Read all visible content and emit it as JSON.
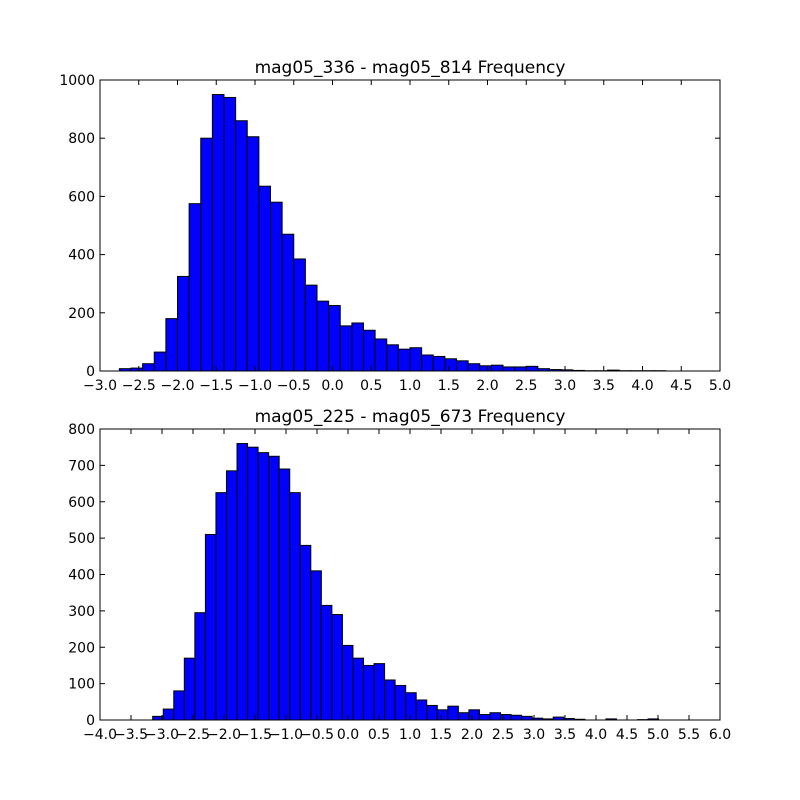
{
  "chart_data": [
    {
      "type": "bar",
      "title": "mag05_336 - mag05_814 Frequency",
      "xlabel": "",
      "ylabel": "",
      "xlim": [
        -3.0,
        5.0
      ],
      "ylim": [
        0,
        1000
      ],
      "grid": false,
      "bar_color": "#0000ff",
      "xticks": [
        "−3.0",
        "−2.5",
        "−2.0",
        "−1.5",
        "−1.0",
        "−0.5",
        "0.0",
        "0.5",
        "1.0",
        "1.5",
        "2.0",
        "2.5",
        "3.0",
        "3.5",
        "4.0",
        "4.5",
        "5.0"
      ],
      "yticks": [
        "0",
        "200",
        "400",
        "600",
        "800",
        "1000"
      ],
      "bin_start": -2.75,
      "bin_width": 0.15,
      "values": [
        8,
        10,
        25,
        65,
        180,
        325,
        575,
        800,
        950,
        940,
        860,
        805,
        635,
        580,
        470,
        385,
        295,
        240,
        225,
        155,
        165,
        140,
        110,
        90,
        75,
        80,
        55,
        50,
        42,
        35,
        25,
        18,
        20,
        14,
        14,
        16,
        8,
        5,
        4,
        2,
        1,
        1,
        3,
        1,
        1,
        1,
        1,
        0,
        0,
        0,
        0,
        0,
        0
      ]
    },
    {
      "type": "bar",
      "title": "mag05_225 - mag05_673 Frequency",
      "xlabel": "",
      "ylabel": "",
      "xlim": [
        -4.0,
        6.0
      ],
      "ylim": [
        0,
        800
      ],
      "grid": false,
      "bar_color": "#0000ff",
      "xticks": [
        "−4.0",
        "−3.5",
        "−3.0",
        "−2.5",
        "−2.0",
        "−1.5",
        "−1.0",
        "−0.5",
        "0.0",
        "0.5",
        "1.0",
        "1.5",
        "2.0",
        "2.5",
        "3.0",
        "3.5",
        "4.0",
        "4.5",
        "5.0",
        "5.5",
        "6.0"
      ],
      "yticks": [
        "0",
        "100",
        "200",
        "300",
        "400",
        "500",
        "600",
        "700",
        "800"
      ],
      "bin_start": -3.15,
      "bin_width": 0.17,
      "values": [
        10,
        30,
        80,
        170,
        295,
        510,
        625,
        685,
        760,
        750,
        735,
        725,
        690,
        625,
        480,
        410,
        315,
        290,
        205,
        170,
        150,
        155,
        110,
        95,
        75,
        55,
        40,
        28,
        38,
        20,
        28,
        15,
        20,
        15,
        13,
        10,
        5,
        3,
        8,
        4,
        2,
        0,
        0,
        3,
        0,
        0,
        1,
        3,
        0,
        0,
        0,
        0,
        0,
        0,
        0,
        0,
        0,
        0,
        0,
        0,
        0
      ]
    }
  ]
}
